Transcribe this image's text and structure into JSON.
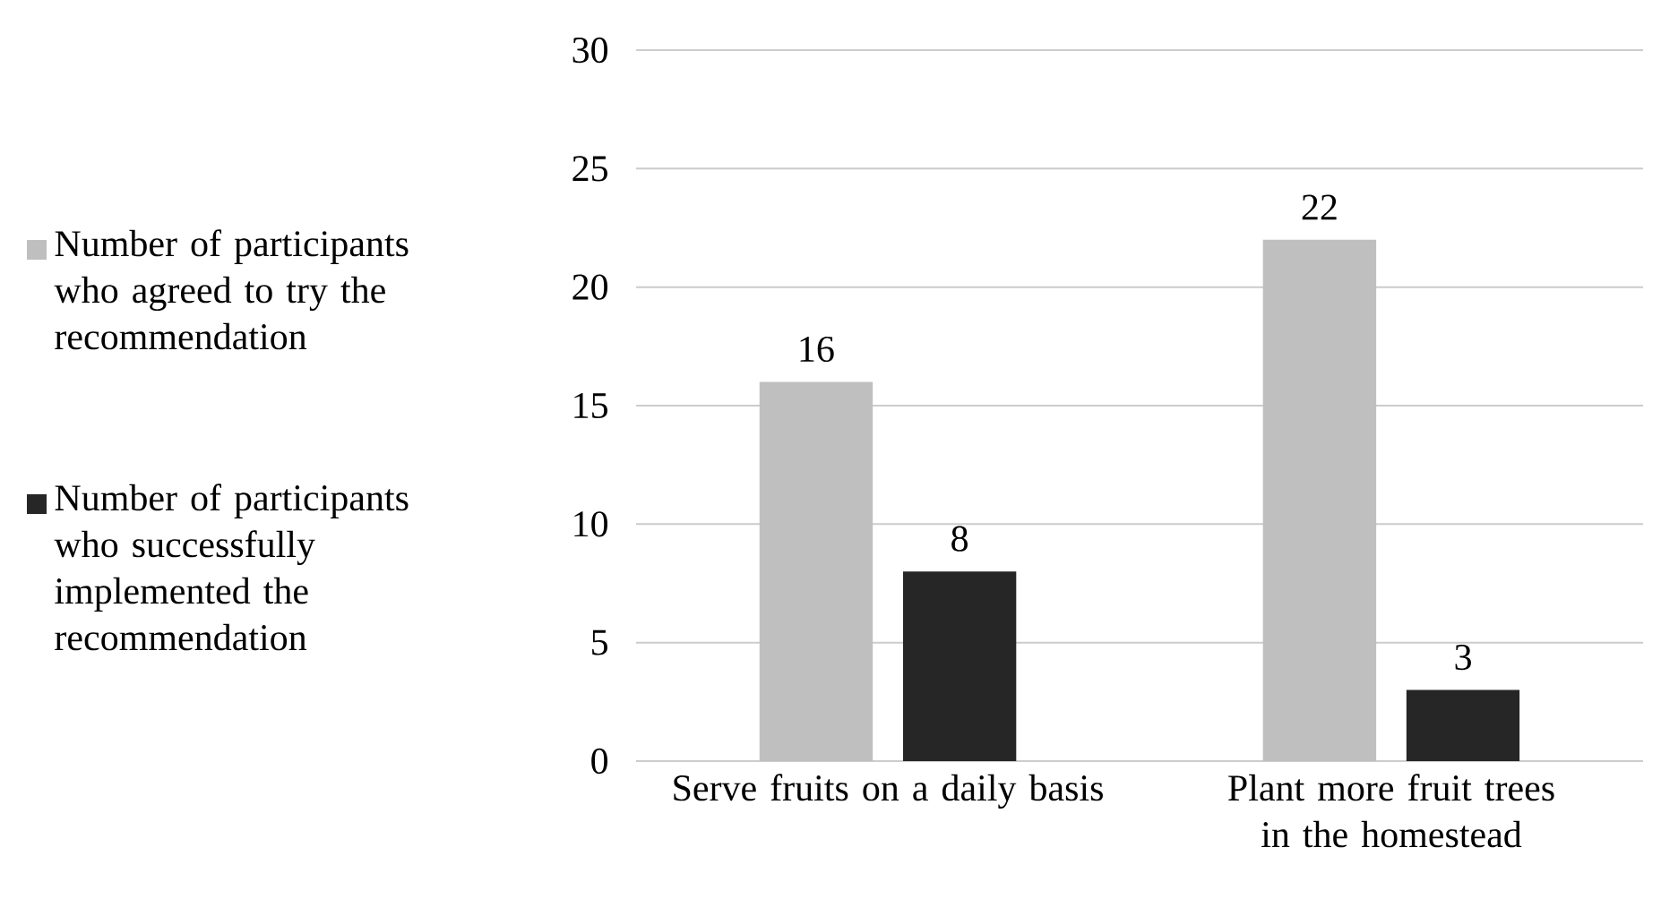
{
  "chart_data": {
    "type": "bar",
    "categories": [
      "Serve fruits on a daily basis",
      "Plant more fruit trees in the homestead"
    ],
    "series": [
      {
        "name": "Number of participants who agreed to try the recommendation",
        "color": "#bfbfbf",
        "values": [
          16,
          22
        ]
      },
      {
        "name": "Number of participants who successfully implemented the recommendation",
        "color": "#262626",
        "values": [
          8,
          3
        ]
      }
    ],
    "ylim": [
      0,
      30
    ],
    "yticks": [
      0,
      5,
      10,
      15,
      20,
      25,
      30
    ],
    "grid": "y",
    "legend": "left",
    "data_labels": true
  }
}
